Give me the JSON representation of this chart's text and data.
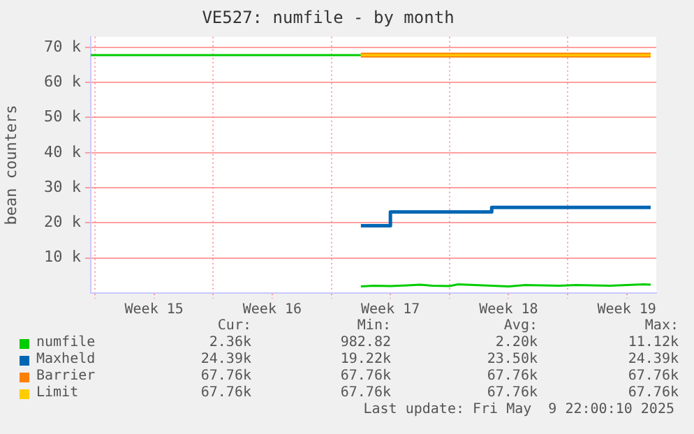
{
  "chart_data": {
    "type": "line",
    "title": "VE527: numfile - by month",
    "ylabel": "bean counters",
    "xlim": [
      "2025-04-06T18:00",
      "2025-05-10T06:00"
    ],
    "xticks": [
      {
        "value": "2025-04-07",
        "label": null
      },
      {
        "value": "2025-04-10T12:00",
        "label": "Week 15"
      },
      {
        "value": "2025-04-14",
        "label": null
      },
      {
        "value": "2025-04-17T12:00",
        "label": "Week 16"
      },
      {
        "value": "2025-04-21",
        "label": null
      },
      {
        "value": "2025-04-24T12:00",
        "label": "Week 17"
      },
      {
        "value": "2025-04-28",
        "label": null
      },
      {
        "value": "2025-05-01T12:00",
        "label": "Week 18"
      },
      {
        "value": "2025-05-05",
        "label": null
      },
      {
        "value": "2025-05-08T12:00",
        "label": "Week 19"
      }
    ],
    "ylim": [
      0,
      73000
    ],
    "yticks": [
      {
        "value": 10000,
        "label": "10 k"
      },
      {
        "value": 20000,
        "label": "20 k"
      },
      {
        "value": 30000,
        "label": "30 k"
      },
      {
        "value": 40000,
        "label": "40 k"
      },
      {
        "value": 50000,
        "label": "50 k"
      },
      {
        "value": 60000,
        "label": "60 k"
      },
      {
        "value": 70000,
        "label": "70 k"
      }
    ],
    "grid": true,
    "legend": "bottom",
    "marker": "none",
    "line_style": "solid",
    "series": [
      {
        "color": "#00cc00",
        "x": [
          "2025-04-06T18:00",
          "2025-04-22T18:00"
        ],
        "values": [
          67800,
          67800
        ]
      },
      {
        "name": "numfile",
        "color": "#00cc00",
        "x": [
          "2025-04-22T18:00",
          "2025-04-23T12:00",
          "2025-04-24T12:00",
          "2025-04-25T12:00",
          "2025-04-26T06:00",
          "2025-04-27",
          "2025-04-28",
          "2025-04-28T12:00",
          "2025-04-29T12:00",
          "2025-04-30T12:00",
          "2025-05-01T12:00",
          "2025-05-02T12:00",
          "2025-05-03T12:00",
          "2025-05-04T12:00",
          "2025-05-05T12:00",
          "2025-05-06T12:00",
          "2025-05-07T12:00",
          "2025-05-08T12:00",
          "2025-05-09T12:00",
          "2025-05-09T22:00"
        ],
        "values": [
          1900,
          2100,
          2000,
          2200,
          2400,
          2100,
          2000,
          2500,
          2300,
          2100,
          1900,
          2300,
          2200,
          2100,
          2300,
          2200,
          2100,
          2300,
          2500,
          2400
        ]
      },
      {
        "name": "Maxheld",
        "color": "#0066b3",
        "type": "step",
        "x": [
          "2025-04-22T18:00",
          "2025-04-24T10:00",
          "2025-04-24T12:00",
          "2025-04-30T07:00",
          "2025-04-30T12:00",
          "2025-05-09T22:00"
        ],
        "values": [
          19200,
          19200,
          23100,
          23100,
          24400,
          24400
        ]
      },
      {
        "name": "Barrier",
        "color": "#ff8000",
        "x": [
          "2025-04-22T18:00",
          "2025-05-09T22:00"
        ],
        "values": [
          67800,
          67800
        ]
      },
      {
        "name": "Limit",
        "color": "#ffcc00",
        "x": [
          "2025-04-22T18:00",
          "2025-05-09T22:00"
        ],
        "values": [
          67800,
          67800
        ]
      }
    ],
    "annotations": [
      "Cur:",
      "Min:",
      "Avg:",
      "Max:",
      "2.36k",
      "982.82",
      "2.20k",
      "11.12k",
      "24.39k",
      "19.22k",
      "23.50k",
      "24.39k",
      "67.76k",
      "67.76k",
      "67.76k",
      "67.76k",
      "67.76k",
      "67.76k",
      "67.76k",
      "67.76k",
      "Last update: Fri May  9 22:00:10 2025"
    ]
  }
}
